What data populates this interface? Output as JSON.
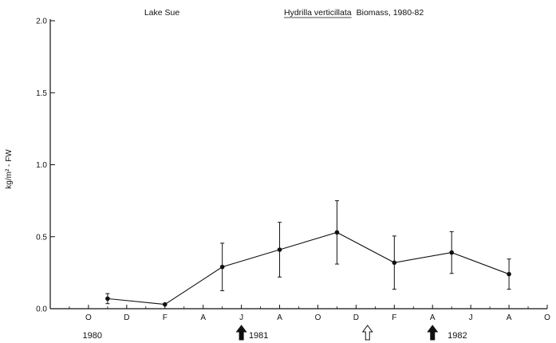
{
  "chart_data": {
    "type": "line",
    "title_left": "Lake Sue",
    "title_species": "Hydrilla verticillata",
    "title_rest": "Biomass, 1980-82",
    "ylabel": "kg/m² - FW",
    "xlabel": "",
    "ylim": [
      0,
      2.0
    ],
    "yticks": [
      "0.0",
      "0.5",
      "1.0",
      "1.5",
      "2.0"
    ],
    "xlim": [
      0,
      26
    ],
    "month_ticks": [
      {
        "x": 2,
        "label": "O"
      },
      {
        "x": 4,
        "label": "D"
      },
      {
        "x": 6,
        "label": "F"
      },
      {
        "x": 8,
        "label": "A"
      },
      {
        "x": 10,
        "label": "J"
      },
      {
        "x": 12,
        "label": "A"
      },
      {
        "x": 14,
        "label": "O"
      },
      {
        "x": 16,
        "label": "D"
      },
      {
        "x": 18,
        "label": "F"
      },
      {
        "x": 20,
        "label": "A"
      },
      {
        "x": 22,
        "label": "J"
      },
      {
        "x": 24,
        "label": "A"
      },
      {
        "x": 26,
        "label": "O"
      }
    ],
    "years": [
      {
        "x": 2.2,
        "label": "1980"
      },
      {
        "x": 10.9,
        "label": "1981"
      },
      {
        "x": 21.3,
        "label": "1982"
      }
    ],
    "arrows": [
      {
        "x": 10.0,
        "style": "filled"
      },
      {
        "x": 16.6,
        "style": "open"
      },
      {
        "x": 20.0,
        "style": "filled"
      }
    ],
    "series": [
      {
        "x": [
          3.0,
          6.0,
          9.0,
          12.0,
          15.0,
          18.0,
          21.0,
          24.0
        ],
        "y": [
          0.07,
          0.03,
          0.29,
          0.41,
          0.53,
          0.32,
          0.39,
          0.24
        ],
        "err": [
          0.035,
          0.0,
          0.165,
          0.19,
          0.22,
          0.185,
          0.145,
          0.105
        ]
      }
    ]
  }
}
